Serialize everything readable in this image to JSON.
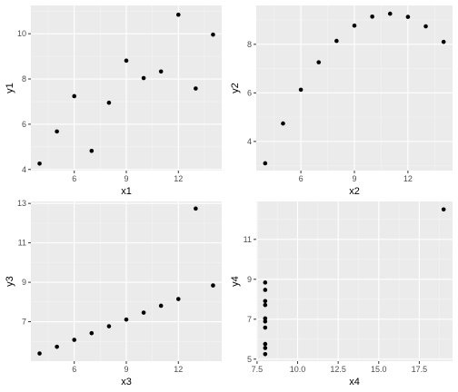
{
  "chart_data": [
    {
      "type": "scatter",
      "xlabel": "x1",
      "ylabel": "y1",
      "xlim": [
        3.5,
        14.5
      ],
      "ylim": [
        3.95,
        11.25
      ],
      "xticks": [
        6,
        9,
        12
      ],
      "yticks": [
        4,
        6,
        8,
        10
      ],
      "x": [
        10,
        8,
        13,
        9,
        11,
        14,
        6,
        4,
        12,
        7,
        5
      ],
      "y": [
        8.04,
        6.95,
        7.58,
        8.81,
        8.33,
        9.96,
        7.24,
        4.26,
        10.84,
        4.82,
        5.68
      ]
    },
    {
      "type": "scatter",
      "xlabel": "x2",
      "ylabel": "y2",
      "xlim": [
        3.5,
        14.5
      ],
      "ylim": [
        2.8,
        9.6
      ],
      "xticks": [
        6,
        9,
        12
      ],
      "yticks": [
        4,
        6,
        8
      ],
      "x": [
        10,
        8,
        13,
        9,
        11,
        14,
        6,
        4,
        12,
        7,
        5
      ],
      "y": [
        9.14,
        8.14,
        8.74,
        8.77,
        9.26,
        8.1,
        6.13,
        3.1,
        9.13,
        7.26,
        4.74
      ]
    },
    {
      "type": "scatter",
      "xlabel": "x3",
      "ylabel": "y3",
      "xlim": [
        3.5,
        14.5
      ],
      "ylim": [
        5.0,
        13.1
      ],
      "xticks": [
        6,
        9,
        12
      ],
      "yticks": [
        7,
        9,
        11,
        13
      ],
      "x": [
        10,
        8,
        13,
        9,
        11,
        14,
        6,
        4,
        12,
        7,
        5
      ],
      "y": [
        7.46,
        6.77,
        12.74,
        7.11,
        7.81,
        8.84,
        6.08,
        5.39,
        8.15,
        6.42,
        5.73
      ]
    },
    {
      "type": "scatter",
      "xlabel": "x4",
      "ylabel": "y4",
      "xlim": [
        7.45,
        19.55
      ],
      "ylim": [
        4.9,
        12.9
      ],
      "xticks": [
        "7.5",
        "10.0",
        "12.5",
        "15.0",
        "17.5"
      ],
      "yticks": [
        5,
        7,
        9,
        11
      ],
      "x": [
        8,
        8,
        8,
        8,
        8,
        8,
        8,
        19,
        8,
        8,
        8
      ],
      "y": [
        6.58,
        5.76,
        7.71,
        8.84,
        8.47,
        7.04,
        5.25,
        12.5,
        5.56,
        7.91,
        6.89
      ]
    }
  ]
}
